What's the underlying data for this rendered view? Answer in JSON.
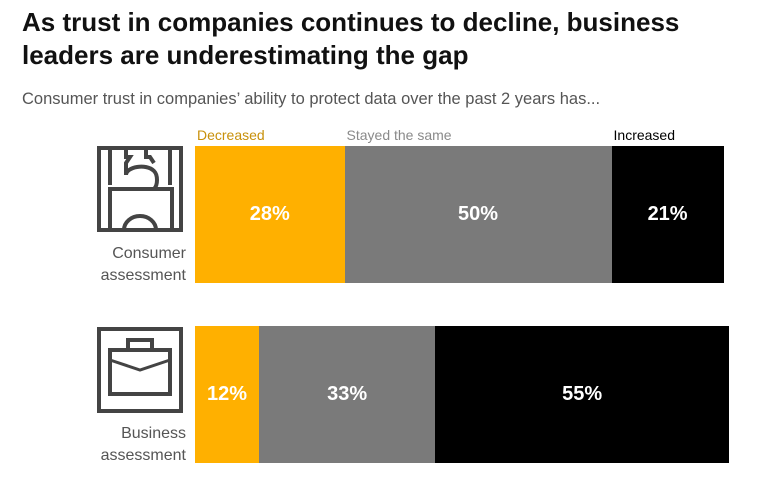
{
  "title": "As trust in companies continues to decline, business leaders are underestimating the gap",
  "subtitle": "Consumer trust in companies’ ability to protect data over the past 2 years has...",
  "chart_data": {
    "type": "bar",
    "orientation": "horizontal",
    "stacked": true,
    "categories": [
      "Consumer assessment",
      "Business assessment"
    ],
    "series": [
      {
        "name": "Decreased",
        "values": [
          28,
          12
        ],
        "color": "#FFB000"
      },
      {
        "name": "Stayed the same",
        "values": [
          50,
          33
        ],
        "color": "#7A7A7A"
      },
      {
        "name": "Increased",
        "values": [
          21,
          55
        ],
        "color": "#000000"
      }
    ],
    "value_unit": "%",
    "grid": false,
    "legend": "top",
    "icons": [
      "consumer-buyer-icon",
      "briefcase-icon"
    ],
    "legend_label_colors": [
      "#C8900A",
      "#8A8A8A",
      "#000000"
    ]
  }
}
